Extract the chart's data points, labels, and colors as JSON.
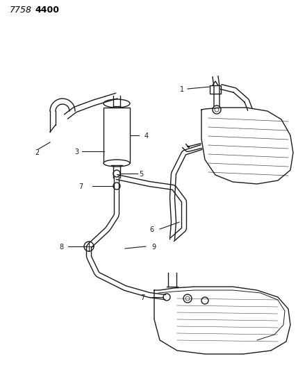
{
  "title_part1": "7758",
  "title_part2": "4400",
  "bg_color": "#ffffff",
  "line_color": "#1a1a1a",
  "fig_width": 4.29,
  "fig_height": 5.33,
  "dpi": 100
}
